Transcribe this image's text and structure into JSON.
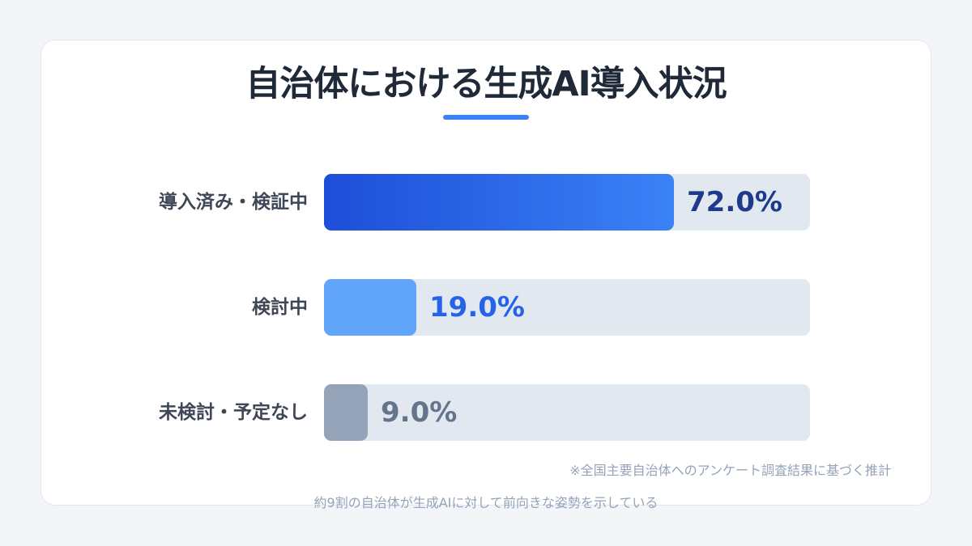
{
  "chart_data": {
    "type": "bar",
    "orientation": "horizontal",
    "title": "自治体における生成AI導入状況",
    "categories": [
      "導入済み・検証中",
      "検討中",
      "未検討・予定なし"
    ],
    "values": [
      72.0,
      19.0,
      9.0
    ],
    "value_labels": [
      "72.0%",
      "19.0%",
      "9.0%"
    ],
    "xlim": [
      0,
      100
    ],
    "unit": "%",
    "grid": false,
    "colors": [
      "#2563eb",
      "#60a5fa",
      "#94a3b8"
    ]
  },
  "note": "※全国主要自治体へのアンケート調査結果に基づく推計",
  "footer": "約9割の自治体が生成AIに対して前向きな姿勢を示している"
}
